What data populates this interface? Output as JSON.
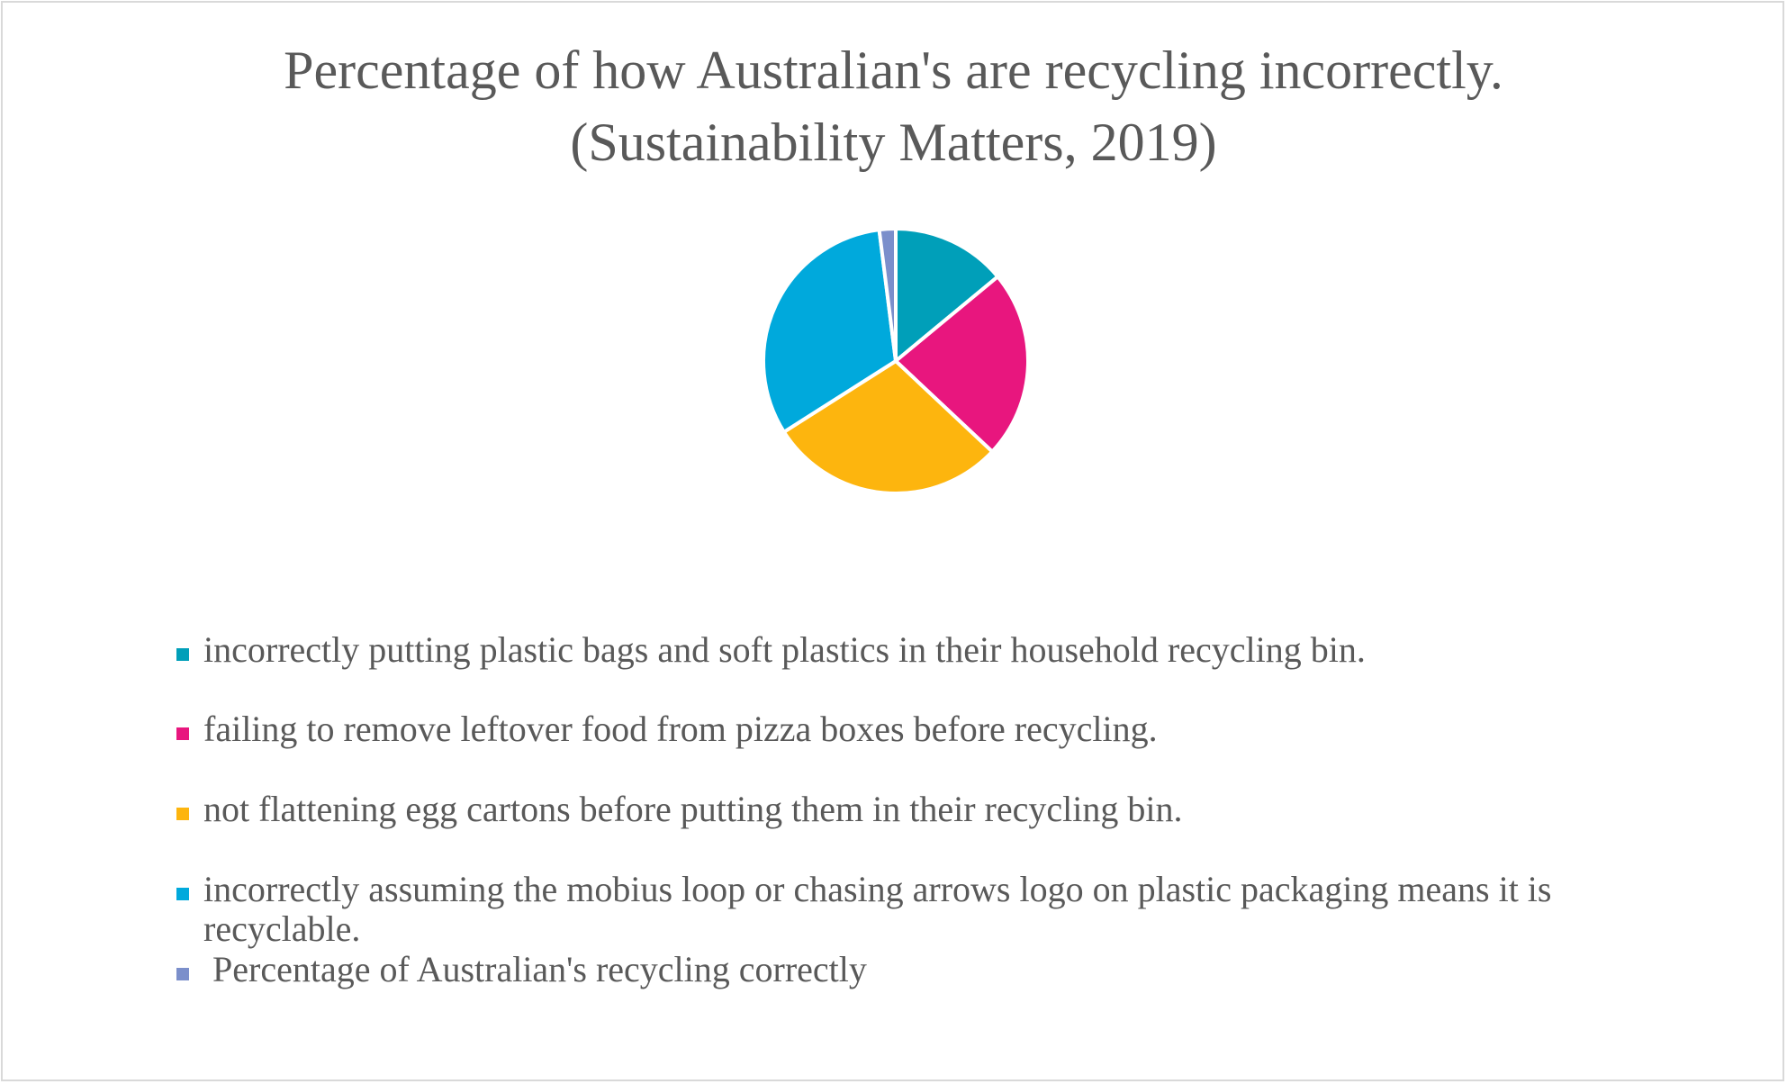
{
  "chart_data": {
    "type": "pie",
    "title": "Percentage of how Australian's are recycling incorrectly. (Sustainability Matters, 2019)",
    "title_lines": [
      "Percentage of how Australian's are recycling incorrectly.",
      "(Sustainability Matters, 2019)"
    ],
    "legend_position": "bottom",
    "slices": [
      {
        "label": "incorrectly putting plastic bags and soft plastics in their household recycling bin.",
        "value": 14,
        "color": "#009fb9"
      },
      {
        "label": "failing to remove leftover food from pizza boxes before recycling.",
        "value": 23,
        "color": "#e8167e"
      },
      {
        "label": "not flattening egg cartons before putting them in their recycling bin.",
        "value": 29,
        "color": "#fdb50e"
      },
      {
        "label": "incorrectly assuming the mobius loop or chasing arrows logo on plastic packaging means it is recyclable.",
        "value": 32,
        "color": "#00a9dc"
      },
      {
        "label": "Percentage of Australian's recycling correctly",
        "value": 2,
        "color": "#7b8fcb"
      }
    ]
  }
}
